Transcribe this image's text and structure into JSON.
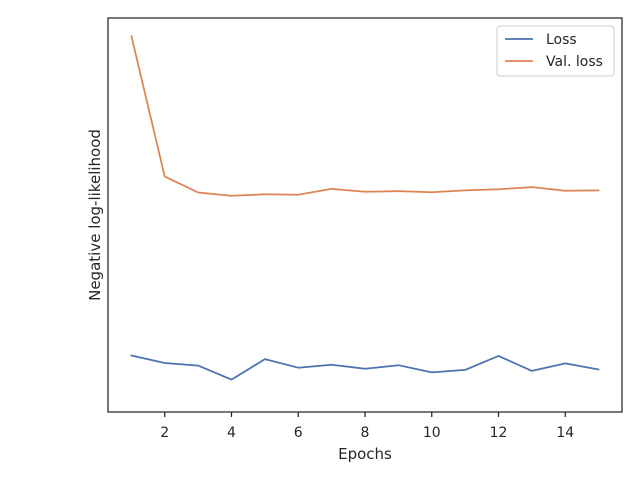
{
  "chart_data": {
    "type": "line",
    "xlabel": "Epochs",
    "ylabel": "Negative log-likelihood",
    "xlim": [
      0.3,
      15.7
    ],
    "ylim": [
      0,
      1
    ],
    "xticks": [
      2,
      4,
      6,
      8,
      10,
      12,
      14
    ],
    "yticks_shown": false,
    "grid": false,
    "legend_position": "top-right",
    "x": [
      1,
      2,
      3,
      4,
      5,
      6,
      7,
      8,
      9,
      10,
      11,
      12,
      13,
      14,
      15
    ],
    "series": [
      {
        "name": "Loss",
        "color": "#4c72b0",
        "values": [
          0.11,
          0.089,
          0.082,
          0.043,
          0.1,
          0.076,
          0.084,
          0.073,
          0.083,
          0.063,
          0.07,
          0.109,
          0.067,
          0.088,
          0.071
        ]
      },
      {
        "name": "Val. loss",
        "color": "#dd8452",
        "values": [
          1.0,
          0.609,
          0.564,
          0.555,
          0.559,
          0.558,
          0.574,
          0.566,
          0.568,
          0.565,
          0.57,
          0.573,
          0.579,
          0.569,
          0.57
        ]
      }
    ]
  }
}
